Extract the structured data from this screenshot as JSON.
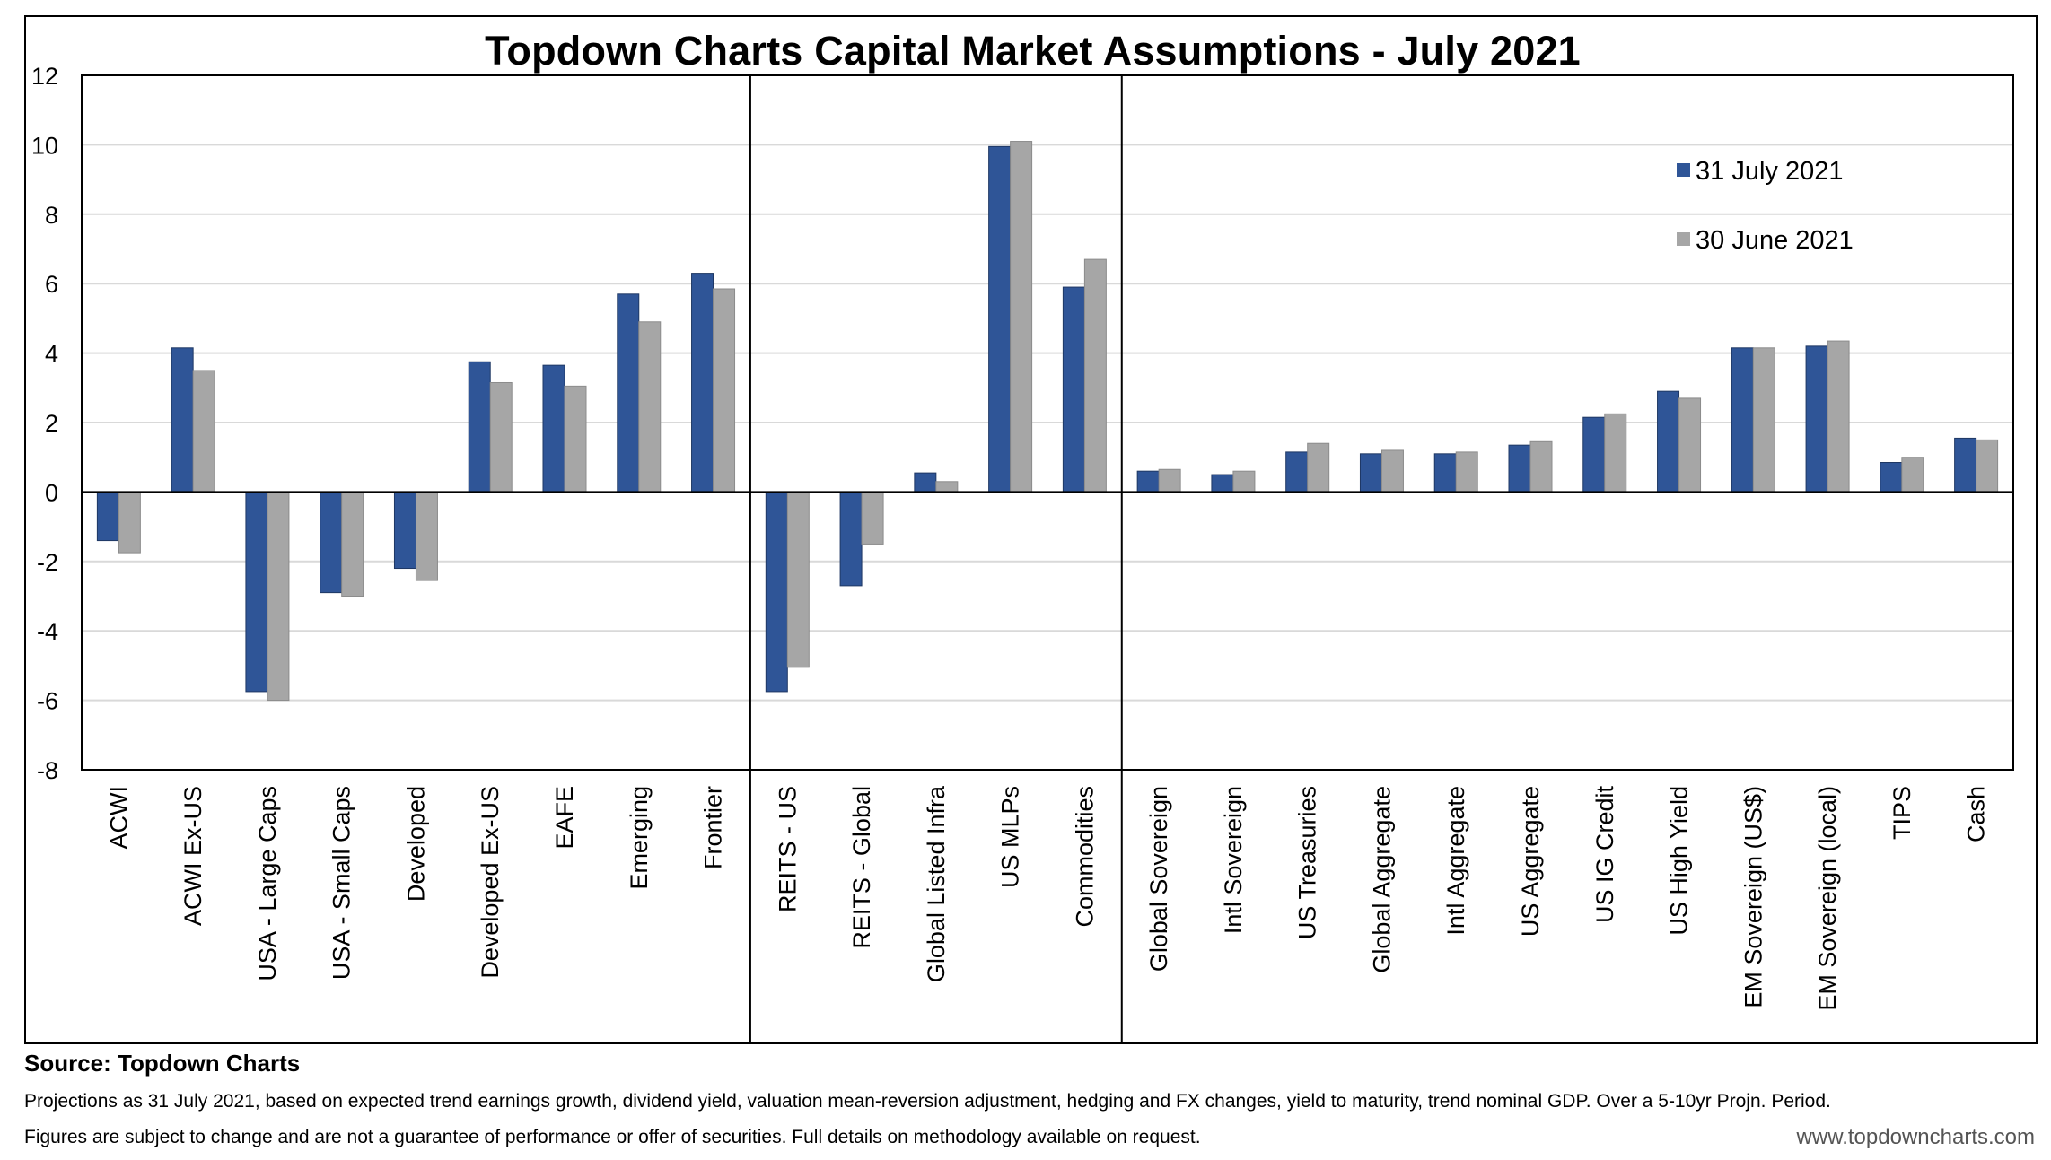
{
  "chart_data": {
    "type": "bar",
    "title": "Topdown Charts Capital Market Assumptions - July 2021",
    "ylim": [
      -8,
      12
    ],
    "y_ticks": [
      12,
      10,
      8,
      6,
      4,
      2,
      0,
      -2,
      -4,
      -6,
      -8
    ],
    "grid": true,
    "legend_position": "top-right",
    "categories": [
      "ACWI",
      "ACWI Ex-US",
      "USA - Large Caps",
      "USA - Small Caps",
      "Developed",
      "Developed Ex-US",
      "EAFE",
      "Emerging",
      "Frontier",
      "REITS - US",
      "REITS - Global",
      "Global Listed Infra",
      "US MLPs",
      "Commodities",
      "Global Sovereign",
      "Intl Sovereign",
      "US Treasuries",
      "Global Aggregate",
      "Intl Aggregate",
      "US Aggregate",
      "US IG Credit",
      "US High Yield",
      "EM Sovereign (US$)",
      "EM Sovereign (local)",
      "TIPS",
      "Cash"
    ],
    "groups": [
      9,
      5,
      12
    ],
    "series": [
      {
        "name": "31 July 2021",
        "color": "#2f5597",
        "values": [
          -1.4,
          4.15,
          -5.75,
          -2.9,
          -2.2,
          3.75,
          3.65,
          5.7,
          6.3,
          -5.75,
          -2.7,
          0.55,
          9.95,
          5.9,
          0.6,
          0.5,
          1.15,
          1.1,
          1.1,
          1.35,
          2.15,
          2.9,
          4.15,
          4.2,
          0.85,
          1.55
        ]
      },
      {
        "name": "30 June 2021",
        "color": "#a6a6a6",
        "values": [
          -1.75,
          3.5,
          -6.0,
          -3.0,
          -2.55,
          3.15,
          3.05,
          4.9,
          5.85,
          -5.05,
          -1.5,
          0.3,
          10.1,
          6.7,
          0.65,
          0.6,
          1.4,
          1.2,
          1.15,
          1.45,
          2.25,
          2.7,
          4.15,
          4.35,
          1.0,
          1.5
        ]
      }
    ]
  },
  "footer": {
    "source": "Source: Topdown Charts",
    "note1": "Projections as 31 July 2021, based on expected trend earnings growth, dividend yield, valuation mean-reversion adjustment, hedging and FX changes, yield to maturity, trend nominal GDP. Over a  5-10yr Projn. Period.",
    "note2": "Figures are subject to change and are not a guarantee of performance or offer of securities.  Full details on methodology available on request.",
    "website": "www.topdowncharts.com"
  }
}
